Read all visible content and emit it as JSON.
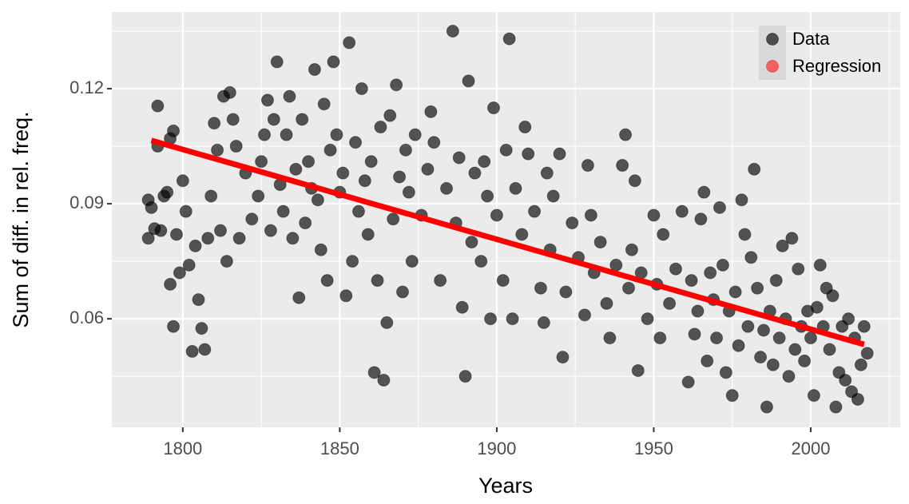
{
  "chart_data": {
    "type": "scatter",
    "x_label": "Years",
    "y_label": "Sum of diff. in rel. freq.",
    "xlim": [
      1777.4,
      2028.5
    ],
    "ylim": [
      0.0317,
      0.14
    ],
    "xticks": [
      1800,
      1850,
      1900,
      1950,
      2000
    ],
    "yticks": [
      0.06,
      0.09,
      0.12
    ],
    "x_minor_grid": [
      1825,
      1875,
      1925,
      1975,
      2025
    ],
    "y_minor_grid": [
      0.045,
      0.075,
      0.105,
      0.135
    ],
    "grid": true,
    "legend": "top-right",
    "series": [
      {
        "name": "Data",
        "color": "#000000",
        "mode": "points",
        "x": [
          1789,
          1789,
          1790,
          1791,
          1792,
          1792,
          1793,
          1794,
          1795,
          1796,
          1796,
          1797,
          1797,
          1798,
          1799,
          1800,
          1801,
          1802,
          1803,
          1804,
          1805,
          1806,
          1807,
          1808,
          1809,
          1810,
          1811,
          1812,
          1813,
          1814,
          1815,
          1816,
          1817,
          1818,
          1820,
          1822,
          1824,
          1825,
          1826,
          1827,
          1828,
          1829,
          1830,
          1831,
          1832,
          1833,
          1834,
          1835,
          1836,
          1837,
          1838,
          1839,
          1840,
          1841,
          1842,
          1843,
          1844,
          1845,
          1846,
          1847,
          1848,
          1849,
          1850,
          1851,
          1852,
          1853,
          1854,
          1855,
          1856,
          1857,
          1858,
          1859,
          1860,
          1861,
          1862,
          1863,
          1864,
          1865,
          1866,
          1867,
          1868,
          1869,
          1870,
          1871,
          1872,
          1873,
          1874,
          1876,
          1878,
          1879,
          1880,
          1882,
          1884,
          1886,
          1887,
          1888,
          1889,
          1890,
          1891,
          1892,
          1893,
          1895,
          1896,
          1897,
          1898,
          1899,
          1900,
          1902,
          1903,
          1904,
          1905,
          1906,
          1908,
          1909,
          1910,
          1912,
          1914,
          1915,
          1916,
          1917,
          1918,
          1920,
          1921,
          1922,
          1924,
          1926,
          1928,
          1929,
          1930,
          1931,
          1933,
          1935,
          1936,
          1938,
          1940,
          1941,
          1942,
          1943,
          1944,
          1945,
          1946,
          1948,
          1950,
          1951,
          1952,
          1953,
          1955,
          1957,
          1959,
          1961,
          1962,
          1963,
          1964,
          1965,
          1966,
          1967,
          1968,
          1969,
          1970,
          1971,
          1972,
          1973,
          1974,
          1975,
          1976,
          1977,
          1978,
          1979,
          1980,
          1981,
          1982,
          1983,
          1984,
          1985,
          1986,
          1987,
          1988,
          1989,
          1990,
          1991,
          1992,
          1993,
          1994,
          1995,
          1996,
          1997,
          1998,
          1999,
          2000,
          2001,
          2002,
          2003,
          2004,
          2005,
          2006,
          2007,
          2008,
          2009,
          2010,
          2011,
          2012,
          2013,
          2014,
          2015,
          2016,
          2017,
          2018
        ],
        "values": [
          0.081,
          0.091,
          0.089,
          0.0835,
          0.1155,
          0.105,
          0.083,
          0.092,
          0.093,
          0.107,
          0.069,
          0.109,
          0.058,
          0.082,
          0.072,
          0.096,
          0.088,
          0.074,
          0.0515,
          0.079,
          0.065,
          0.0575,
          0.052,
          0.081,
          0.092,
          0.111,
          0.104,
          0.083,
          0.118,
          0.075,
          0.119,
          0.112,
          0.105,
          0.081,
          0.098,
          0.086,
          0.092,
          0.101,
          0.108,
          0.117,
          0.083,
          0.112,
          0.127,
          0.095,
          0.088,
          0.108,
          0.118,
          0.081,
          0.099,
          0.0655,
          0.112,
          0.085,
          0.101,
          0.094,
          0.125,
          0.091,
          0.078,
          0.116,
          0.07,
          0.104,
          0.127,
          0.108,
          0.093,
          0.098,
          0.066,
          0.132,
          0.075,
          0.106,
          0.088,
          0.12,
          0.096,
          0.082,
          0.101,
          0.046,
          0.07,
          0.11,
          0.044,
          0.059,
          0.113,
          0.086,
          0.121,
          0.097,
          0.067,
          0.104,
          0.093,
          0.075,
          0.108,
          0.087,
          0.099,
          0.114,
          0.106,
          0.07,
          0.094,
          0.135,
          0.085,
          0.102,
          0.063,
          0.045,
          0.122,
          0.08,
          0.098,
          0.075,
          0.101,
          0.092,
          0.06,
          0.115,
          0.087,
          0.07,
          0.104,
          0.133,
          0.06,
          0.094,
          0.082,
          0.11,
          0.103,
          0.088,
          0.068,
          0.059,
          0.098,
          0.078,
          0.092,
          0.103,
          0.05,
          0.067,
          0.085,
          0.076,
          0.061,
          0.1,
          0.087,
          0.072,
          0.08,
          0.064,
          0.055,
          0.074,
          0.1,
          0.108,
          0.068,
          0.078,
          0.096,
          0.0465,
          0.072,
          0.06,
          0.087,
          0.069,
          0.055,
          0.082,
          0.064,
          0.073,
          0.088,
          0.0435,
          0.07,
          0.056,
          0.062,
          0.086,
          0.093,
          0.049,
          0.072,
          0.065,
          0.055,
          0.089,
          0.074,
          0.046,
          0.062,
          0.04,
          0.067,
          0.053,
          0.091,
          0.082,
          0.058,
          0.076,
          0.099,
          0.068,
          0.05,
          0.057,
          0.037,
          0.062,
          0.048,
          0.07,
          0.055,
          0.079,
          0.06,
          0.045,
          0.081,
          0.052,
          0.073,
          0.058,
          0.049,
          0.062,
          0.055,
          0.04,
          0.063,
          0.074,
          0.058,
          0.068,
          0.052,
          0.066,
          0.037,
          0.046,
          0.058,
          0.044,
          0.06,
          0.041,
          0.055,
          0.039,
          0.048,
          0.058,
          0.051
        ]
      },
      {
        "name": "Regression",
        "color": "#ff0000",
        "mode": "line",
        "x": [
          1790,
          2017
        ],
        "values": [
          0.1065,
          0.0533
        ]
      }
    ]
  }
}
